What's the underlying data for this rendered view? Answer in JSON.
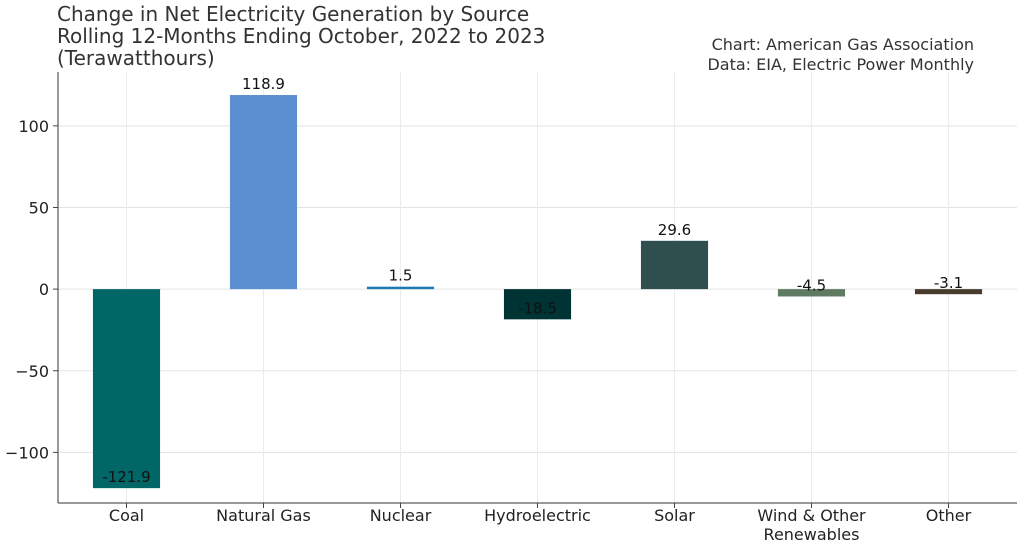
{
  "chart_data": {
    "type": "bar",
    "title_lines": [
      "Change in Net Electricity Generation by Source",
      "Rolling 12-Months Ending October, 2022 to 2023",
      "(Terawatthours)"
    ],
    "source_lines": [
      "Chart: American Gas Association",
      "Data: EIA, Electric Power Monthly"
    ],
    "categories": [
      "Coal",
      "Natural Gas",
      "Nuclear",
      "Hydroelectric",
      "Solar",
      "Wind & Other Renewables",
      "Other"
    ],
    "category_label_lines": [
      [
        "Coal"
      ],
      [
        "Natural Gas"
      ],
      [
        "Nuclear"
      ],
      [
        "Hydroelectric"
      ],
      [
        "Solar"
      ],
      [
        "Wind & Other",
        "Renewables"
      ],
      [
        "Other"
      ]
    ],
    "values": [
      -121.9,
      118.9,
      1.5,
      -18.5,
      29.6,
      -4.5,
      -3.1
    ],
    "value_labels": [
      "-121.9",
      "118.9",
      "1.5",
      "-18.5",
      "29.6",
      "-4.5",
      "-3.1"
    ],
    "colors": [
      "#006666",
      "#5b8fd1",
      "#1f77b4",
      "#003333",
      "#2f4f4f",
      "#5f7a63",
      "#4a3b2f"
    ],
    "yticks": [
      -100,
      -50,
      0,
      50,
      100
    ],
    "ytick_labels": [
      "−100",
      "−50",
      "0",
      "50",
      "100"
    ],
    "ylim": [
      -131,
      133
    ],
    "grid": true,
    "xlabel": "",
    "ylabel": ""
  }
}
